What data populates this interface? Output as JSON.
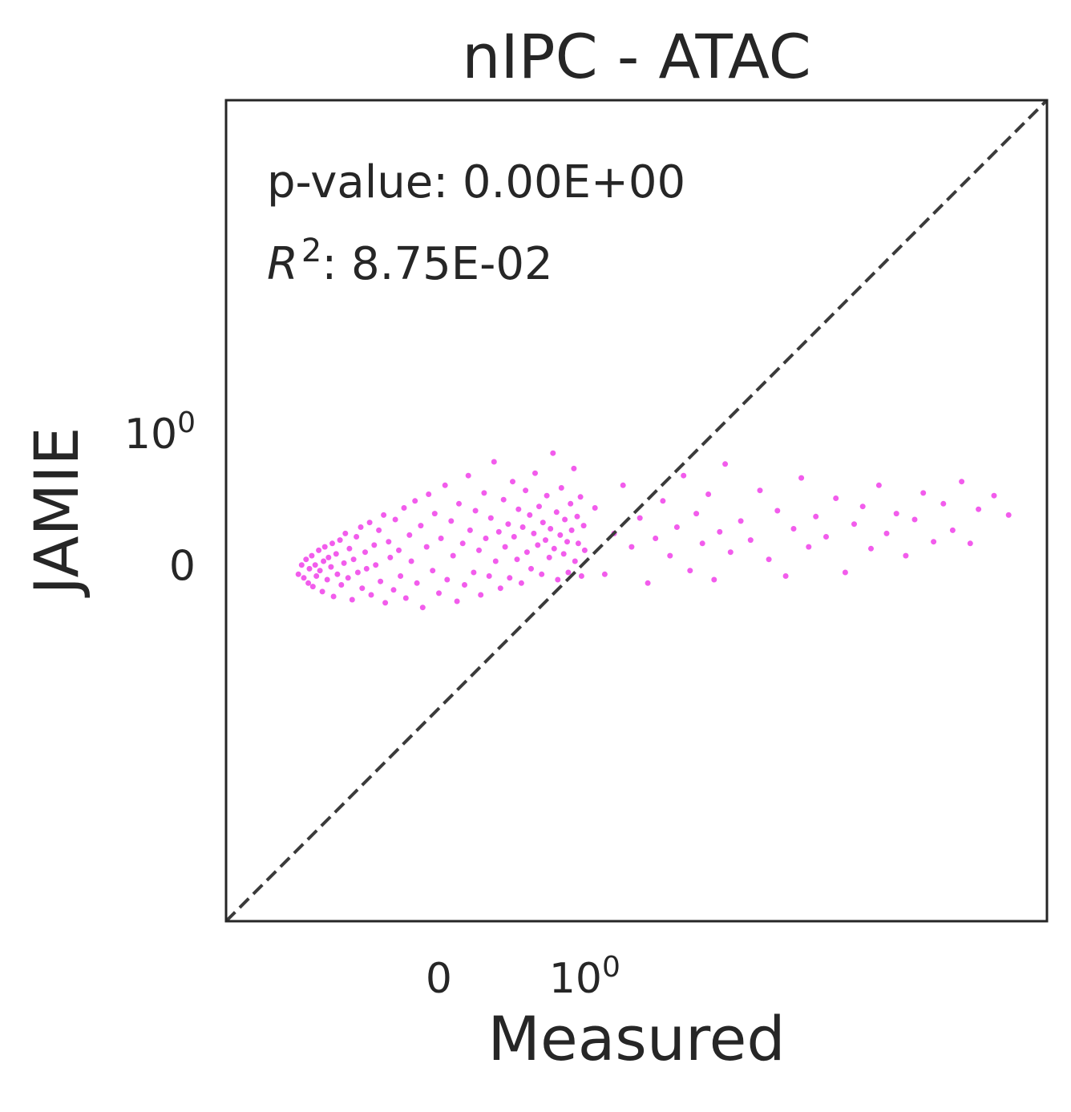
{
  "chart_data": {
    "type": "scatter",
    "title": "nIPC - ATAC",
    "xlabel": "Measured",
    "ylabel": "JAMIE",
    "x_scale": "symlog",
    "y_scale": "symlog",
    "xlim": [
      -1.75,
      17
    ],
    "ylim": [
      -5.5,
      10.5
    ],
    "x_ticks": [
      {
        "value": 0,
        "label": "0"
      },
      {
        "value": 1,
        "label": "10",
        "exp": "0"
      }
    ],
    "y_ticks": [
      {
        "value": 0,
        "label": "0"
      },
      {
        "value": 1,
        "label": "10",
        "exp": "0"
      }
    ],
    "grid": false,
    "reference_line": "y = x (dashed)",
    "point_color": "#f25cec",
    "annotations": {
      "pvalue_prefix": "p-value: ",
      "pvalue": "0.00E+00",
      "r2_symbol": "R",
      "r2_exp": "2",
      "r2_sep": ": ",
      "r2": "8.75E-02"
    },
    "series": [
      {
        "values": [
          [
            -0.95,
            -0.05
          ],
          [
            -0.92,
            0.0
          ],
          [
            -0.9,
            -0.07
          ],
          [
            -0.88,
            0.03
          ],
          [
            -0.86,
            -0.1
          ],
          [
            -0.85,
            -0.02
          ],
          [
            -0.83,
            0.05
          ],
          [
            -0.82,
            -0.12
          ],
          [
            -0.8,
            0.0
          ],
          [
            -0.79,
            -0.06
          ],
          [
            -0.77,
            0.08
          ],
          [
            -0.76,
            -0.03
          ],
          [
            -0.74,
            -0.15
          ],
          [
            -0.73,
            0.02
          ],
          [
            -0.72,
            0.1
          ],
          [
            -0.7,
            -0.08
          ],
          [
            -0.69,
            0.04
          ],
          [
            -0.67,
            -0.01
          ],
          [
            -0.66,
            0.12
          ],
          [
            -0.65,
            -0.18
          ],
          [
            -0.63,
            0.06
          ],
          [
            -0.62,
            -0.05
          ],
          [
            -0.6,
            0.14
          ],
          [
            -0.59,
            -0.11
          ],
          [
            -0.57,
            0.01
          ],
          [
            -0.56,
            0.18
          ],
          [
            -0.54,
            -0.07
          ],
          [
            -0.53,
            0.09
          ],
          [
            -0.51,
            -0.2
          ],
          [
            -0.5,
            0.03
          ],
          [
            -0.48,
            0.16
          ],
          [
            -0.47,
            -0.04
          ],
          [
            -0.45,
            0.22
          ],
          [
            -0.44,
            -0.13
          ],
          [
            -0.42,
            0.07
          ],
          [
            -0.41,
            -0.02
          ],
          [
            -0.39,
            0.25
          ],
          [
            -0.38,
            -0.17
          ],
          [
            -0.36,
            0.11
          ],
          [
            -0.35,
            0.0
          ],
          [
            -0.33,
            0.2
          ],
          [
            -0.32,
            -0.09
          ],
          [
            -0.3,
            0.3
          ],
          [
            -0.29,
            -0.22
          ],
          [
            -0.27,
            0.13
          ],
          [
            -0.26,
            0.04
          ],
          [
            -0.24,
            -0.14
          ],
          [
            -0.23,
            0.27
          ],
          [
            -0.21,
            0.08
          ],
          [
            -0.2,
            -0.06
          ],
          [
            -0.18,
            0.35
          ],
          [
            -0.17,
            -0.19
          ],
          [
            -0.15,
            0.17
          ],
          [
            -0.14,
            0.02
          ],
          [
            -0.12,
            0.4
          ],
          [
            -0.11,
            -0.1
          ],
          [
            -0.09,
            0.23
          ],
          [
            -0.08,
            -0.25
          ],
          [
            -0.06,
            0.1
          ],
          [
            -0.05,
            0.45
          ],
          [
            -0.03,
            -0.03
          ],
          [
            -0.02,
            0.31
          ],
          [
            0.0,
            -0.16
          ],
          [
            0.01,
            0.15
          ],
          [
            0.03,
            0.52
          ],
          [
            0.04,
            -0.08
          ],
          [
            0.06,
            0.26
          ],
          [
            0.07,
            0.05
          ],
          [
            0.09,
            -0.21
          ],
          [
            0.1,
            0.38
          ],
          [
            0.12,
            0.12
          ],
          [
            0.13,
            -0.11
          ],
          [
            0.15,
            0.6
          ],
          [
            0.16,
            0.2
          ],
          [
            0.18,
            -0.04
          ],
          [
            0.19,
            0.33
          ],
          [
            0.21,
            0.08
          ],
          [
            0.22,
            -0.17
          ],
          [
            0.24,
            0.46
          ],
          [
            0.25,
            0.15
          ],
          [
            0.27,
            -0.06
          ],
          [
            0.28,
            0.28
          ],
          [
            0.3,
            0.72
          ],
          [
            0.31,
            0.02
          ],
          [
            0.33,
            0.19
          ],
          [
            0.34,
            -0.13
          ],
          [
            0.36,
            0.41
          ],
          [
            0.37,
            0.1
          ],
          [
            0.39,
            0.24
          ],
          [
            0.4,
            -0.07
          ],
          [
            0.42,
            0.55
          ],
          [
            0.43,
            0.16
          ],
          [
            0.45,
            0.03
          ],
          [
            0.46,
            0.34
          ],
          [
            0.48,
            -0.1
          ],
          [
            0.49,
            0.22
          ],
          [
            0.51,
            0.48
          ],
          [
            0.52,
            0.07
          ],
          [
            0.54,
            0.3
          ],
          [
            0.55,
            -0.02
          ],
          [
            0.57,
            0.18
          ],
          [
            0.58,
            0.62
          ],
          [
            0.6,
            0.11
          ],
          [
            0.61,
            0.36
          ],
          [
            0.63,
            -0.05
          ],
          [
            0.64,
            0.25
          ],
          [
            0.66,
            0.14
          ],
          [
            0.67,
            0.44
          ],
          [
            0.69,
            0.04
          ],
          [
            0.7,
            0.21
          ],
          [
            0.72,
            0.8
          ],
          [
            0.73,
            0.09
          ],
          [
            0.75,
            0.32
          ],
          [
            0.76,
            -0.08
          ],
          [
            0.78,
            0.17
          ],
          [
            0.79,
            0.5
          ],
          [
            0.81,
            0.06
          ],
          [
            0.82,
            0.27
          ],
          [
            0.84,
            0.13
          ],
          [
            0.85,
            -0.04
          ],
          [
            0.87,
            0.38
          ],
          [
            0.88,
            0.2
          ],
          [
            0.9,
            0.66
          ],
          [
            0.91,
            0.02
          ],
          [
            0.93,
            0.29
          ],
          [
            0.94,
            0.12
          ],
          [
            0.96,
            0.43
          ],
          [
            0.97,
            -0.06
          ],
          [
            0.99,
            0.23
          ],
          [
            1.0,
            0.08
          ],
          [
            1.1,
            0.35
          ],
          [
            1.2,
            -0.05
          ],
          [
            1.3,
            0.18
          ],
          [
            1.4,
            0.52
          ],
          [
            1.5,
            0.1
          ],
          [
            1.6,
            0.28
          ],
          [
            1.7,
            -0.1
          ],
          [
            1.8,
            0.15
          ],
          [
            1.9,
            0.4
          ],
          [
            2.0,
            0.05
          ],
          [
            2.1,
            0.22
          ],
          [
            2.2,
            0.6
          ],
          [
            2.3,
            -0.03
          ],
          [
            2.4,
            0.31
          ],
          [
            2.5,
            0.12
          ],
          [
            2.6,
            0.45
          ],
          [
            2.7,
            -0.08
          ],
          [
            2.8,
            0.19
          ],
          [
            2.9,
            0.7
          ],
          [
            3.0,
            0.07
          ],
          [
            3.2,
            0.26
          ],
          [
            3.4,
            0.14
          ],
          [
            3.6,
            0.48
          ],
          [
            3.8,
            0.03
          ],
          [
            4.0,
            0.33
          ],
          [
            4.2,
            -0.06
          ],
          [
            4.4,
            0.21
          ],
          [
            4.6,
            0.58
          ],
          [
            4.8,
            0.1
          ],
          [
            5.0,
            0.29
          ],
          [
            5.3,
            0.16
          ],
          [
            5.6,
            0.42
          ],
          [
            5.9,
            -0.04
          ],
          [
            6.2,
            0.24
          ],
          [
            6.5,
            0.36
          ],
          [
            6.8,
            0.09
          ],
          [
            7.1,
            0.52
          ],
          [
            7.4,
            0.18
          ],
          [
            7.8,
            0.31
          ],
          [
            8.2,
            0.05
          ],
          [
            8.6,
            0.27
          ],
          [
            9.0,
            0.46
          ],
          [
            9.5,
            0.13
          ],
          [
            10.0,
            0.38
          ],
          [
            10.5,
            0.2
          ],
          [
            11.0,
            0.55
          ],
          [
            11.5,
            0.12
          ],
          [
            12.0,
            0.34
          ],
          [
            13.0,
            0.44
          ],
          [
            14.0,
            0.3
          ]
        ]
      }
    ]
  }
}
